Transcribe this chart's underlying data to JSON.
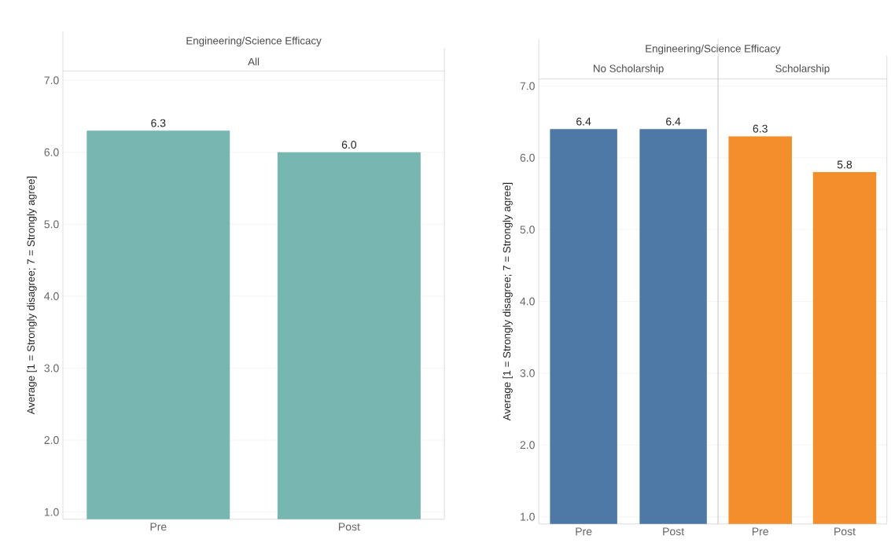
{
  "chart_data": [
    {
      "type": "bar",
      "title": "Engineering/Science Efficacy",
      "subtitle": "All",
      "ylabel": "Average [1 = Strongly disagree; 7 = Strongly agree]",
      "categories": [
        "Pre",
        "Post"
      ],
      "values": [
        6.3,
        6.0
      ],
      "value_labels": [
        "6.3",
        "6.0"
      ],
      "color": "#76b7b2",
      "ylim": [
        0.9,
        7.13
      ],
      "yticks": [
        {
          "value": 1,
          "label": "1.0"
        },
        {
          "value": 2,
          "label": "2.0"
        },
        {
          "value": 3,
          "label": "3.0"
        },
        {
          "value": 4,
          "label": "4.0"
        },
        {
          "value": 5,
          "label": "5.0"
        },
        {
          "value": 6,
          "label": "6.0"
        },
        {
          "value": 7,
          "label": "7.0"
        }
      ],
      "grid": "y"
    },
    {
      "type": "bar",
      "title": "Engineering/Science Efficacy",
      "subtitle": "No Scholarship",
      "ylabel": "Average [1 = Strongly disagree; 7 = Strongly agree]",
      "categories": [
        "Pre",
        "Post"
      ],
      "values": [
        6.4,
        6.4
      ],
      "value_labels": [
        "6.4",
        "6.4"
      ],
      "color": "#4e79a7",
      "ylim": [
        0.9,
        7.1
      ],
      "yticks": [
        {
          "value": 1,
          "label": "1.0"
        },
        {
          "value": 2,
          "label": "2.0"
        },
        {
          "value": 3,
          "label": "3.0"
        },
        {
          "value": 4,
          "label": "4.0"
        },
        {
          "value": 5,
          "label": "5.0"
        },
        {
          "value": 6,
          "label": "6.0"
        },
        {
          "value": 7,
          "label": "7.0"
        }
      ],
      "grid": "y"
    },
    {
      "type": "bar",
      "subtitle": "Scholarship",
      "categories": [
        "Pre",
        "Post"
      ],
      "values": [
        6.3,
        5.8
      ],
      "value_labels": [
        "6.3",
        "5.8"
      ],
      "color": "#f28e2b",
      "ylim": [
        0.9,
        7.1
      ],
      "yticks": [
        1,
        2,
        3,
        4,
        5,
        6,
        7
      ],
      "grid": "y",
      "tick_labels": "x"
    }
  ]
}
